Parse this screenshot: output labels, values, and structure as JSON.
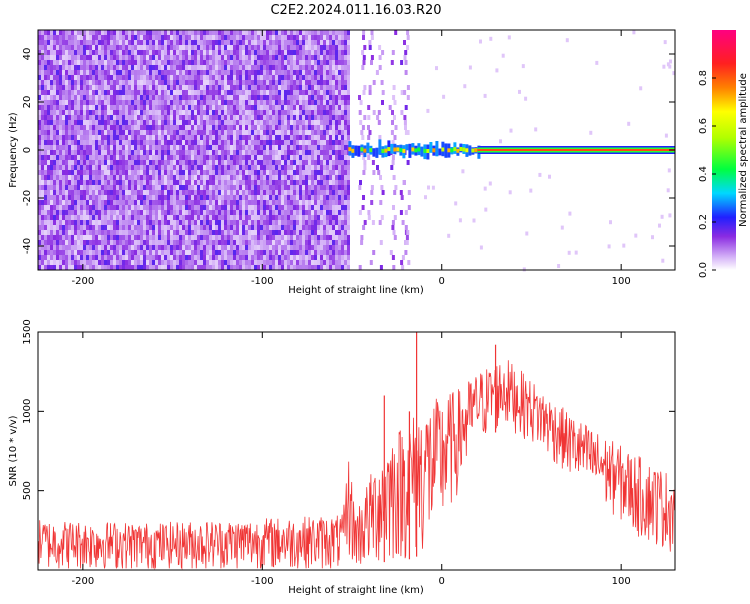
{
  "page": {
    "title": "C2E2.2024.011.16.03.R20"
  },
  "colors": {
    "spectrogram_low": "#8a2be2",
    "snr_line": "#f03535",
    "background": "#ffffff",
    "axes": "#000000"
  },
  "chart_data": [
    {
      "id": "spectrogram",
      "type": "heatmap",
      "title": "C2E2.2024.011.16.03.R20",
      "xlabel": "Height of straight line (km)",
      "ylabel": "Frequency (Hz)",
      "xlim": [
        -225,
        130
      ],
      "ylim": [
        -50,
        50
      ],
      "x_ticks": [
        -200,
        -100,
        0,
        100
      ],
      "y_ticks": [
        -40,
        -20,
        0,
        20,
        40
      ],
      "noise_region": {
        "x_start": -225,
        "x_end": -52,
        "mean_amplitude": 0.25
      },
      "sparse_noise_bands_x": [
        -45,
        -40,
        -35,
        -28,
        -22,
        -20
      ],
      "signal": {
        "frequency_hz": 0,
        "x_start": -52,
        "x_end": 130,
        "peak_amplitude": 0.9
      },
      "colorbar": {
        "label": "Normalized spectral amplitude",
        "range": [
          0.0,
          1.0
        ],
        "ticks": [
          0.0,
          0.2,
          0.4,
          0.6,
          0.8
        ],
        "tick_labels": [
          "0.0",
          "0.2",
          "0.4",
          "0.6",
          "0.8"
        ]
      },
      "grid": false
    },
    {
      "id": "snr",
      "type": "line",
      "xlabel": "Height of straight line (km)",
      "ylabel": "SNR (10 * v/v)",
      "xlim": [
        -225,
        130
      ],
      "ylim": [
        0,
        1500
      ],
      "x_ticks": [
        -200,
        -100,
        0,
        100
      ],
      "y_ticks": [
        500,
        1000,
        1500
      ],
      "series": [
        {
          "color": "#f03535",
          "profile": [
            {
              "x": -225,
              "low": 0,
              "high": 320
            },
            {
              "x": -160,
              "low": 0,
              "high": 300
            },
            {
              "x": -100,
              "low": 0,
              "high": 330
            },
            {
              "x": -55,
              "low": 0,
              "high": 350
            },
            {
              "x": -52,
              "low": 80,
              "high": 750
            },
            {
              "x": -48,
              "low": 0,
              "high": 380
            },
            {
              "x": -40,
              "low": 20,
              "high": 600
            },
            {
              "x": -30,
              "low": 40,
              "high": 850
            },
            {
              "x": -20,
              "low": 60,
              "high": 950
            },
            {
              "x": -10,
              "low": 100,
              "high": 1050
            },
            {
              "x": 0,
              "low": 250,
              "high": 1100
            },
            {
              "x": 10,
              "low": 500,
              "high": 1150
            },
            {
              "x": 20,
              "low": 800,
              "high": 1250
            },
            {
              "x": 35,
              "low": 900,
              "high": 1350
            },
            {
              "x": 50,
              "low": 800,
              "high": 1200
            },
            {
              "x": 70,
              "low": 600,
              "high": 1000
            },
            {
              "x": 90,
              "low": 400,
              "high": 850
            },
            {
              "x": 110,
              "low": 200,
              "high": 720
            },
            {
              "x": 130,
              "low": 100,
              "high": 600
            }
          ],
          "spikes": [
            {
              "x": -32,
              "y": 1100
            },
            {
              "x": -14,
              "y": 1500
            },
            {
              "x": -18,
              "y": 1000
            },
            {
              "x": 30,
              "y": 1420
            }
          ]
        }
      ],
      "grid": false
    }
  ]
}
